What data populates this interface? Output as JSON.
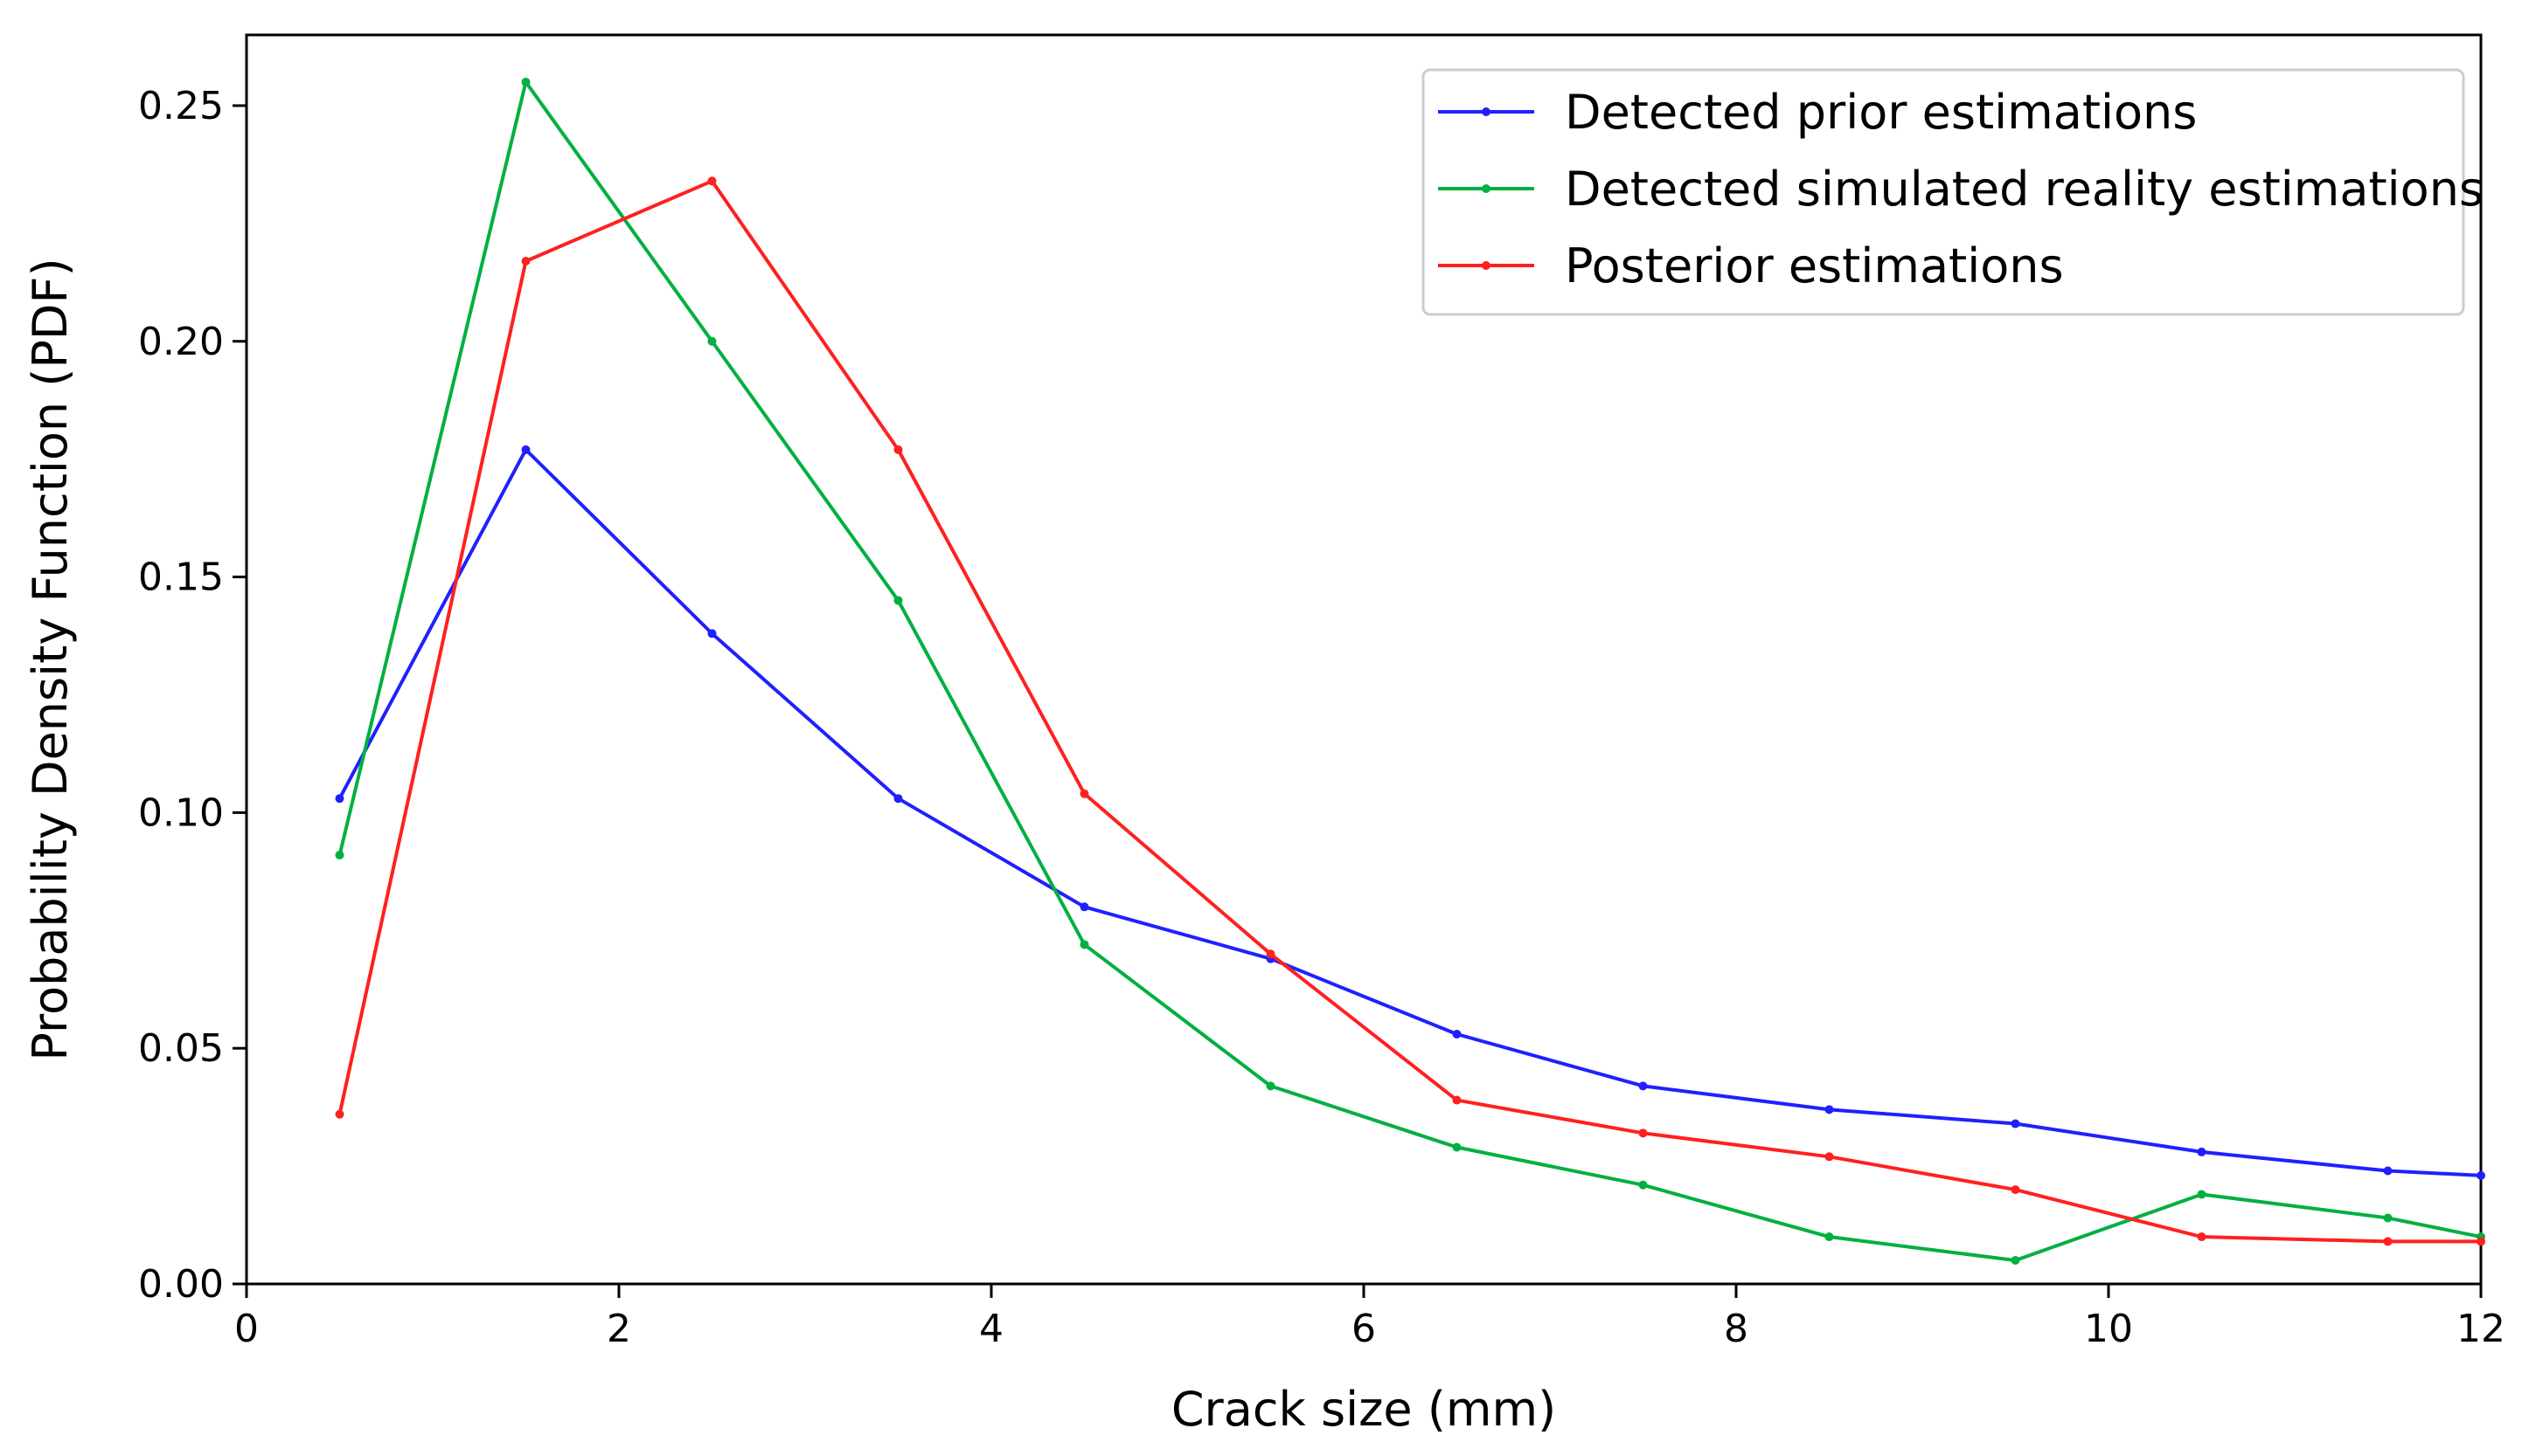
{
  "chart_data": {
    "type": "line",
    "title": "",
    "xlabel": "Crack size (mm)",
    "ylabel": "Probability Density Function (PDF)",
    "xlim": [
      0,
      12
    ],
    "ylim": [
      0,
      0.265
    ],
    "grid": false,
    "legend_position": "top-right",
    "x_ticks": [
      0,
      2,
      4,
      6,
      8,
      10,
      12
    ],
    "x_tick_labels": [
      "0",
      "2",
      "4",
      "6",
      "8",
      "10",
      "12"
    ],
    "y_ticks": [
      0.0,
      0.05,
      0.1,
      0.15,
      0.2,
      0.25
    ],
    "y_tick_labels": [
      "0.00",
      "0.05",
      "0.10",
      "0.15",
      "0.20",
      "0.25"
    ],
    "x": [
      0.5,
      1.5,
      2.5,
      3.5,
      4.5,
      5.5,
      6.5,
      7.5,
      8.5,
      9.5,
      10.5,
      11.5,
      12.0
    ],
    "series": [
      {
        "name": "Detected prior estimations",
        "color": "#2020ff",
        "values": [
          0.103,
          0.177,
          0.138,
          0.103,
          0.08,
          0.069,
          0.053,
          0.042,
          0.037,
          0.034,
          0.028,
          0.024,
          0.023
        ]
      },
      {
        "name": "Detected simulated reality estimations",
        "color": "#00b040",
        "values": [
          0.091,
          0.255,
          0.2,
          0.145,
          0.072,
          0.042,
          0.029,
          0.021,
          0.01,
          0.005,
          0.019,
          0.014,
          0.01
        ]
      },
      {
        "name": "Posterior estimations",
        "color": "#ff2020",
        "values": [
          0.036,
          0.217,
          0.234,
          0.177,
          0.104,
          0.07,
          0.039,
          0.032,
          0.027,
          0.02,
          0.01,
          0.009,
          0.009
        ]
      }
    ]
  }
}
